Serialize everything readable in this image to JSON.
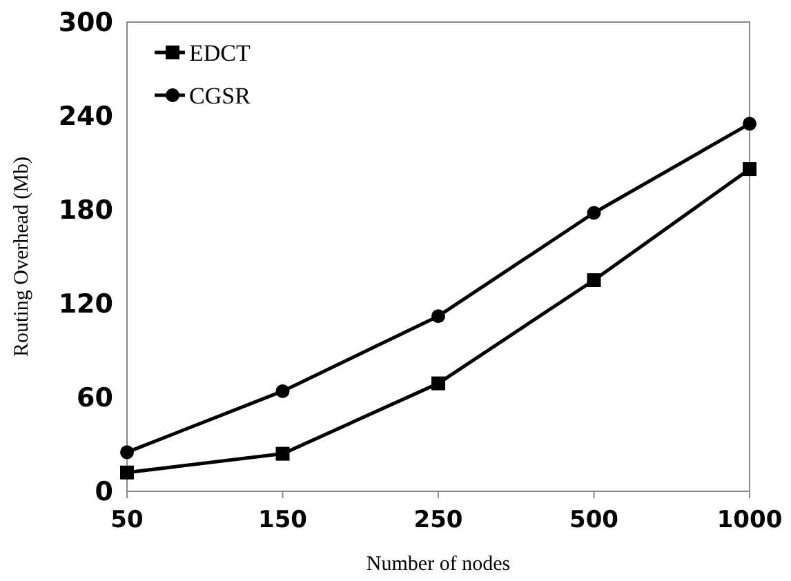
{
  "chart_data": {
    "type": "line",
    "xlabel": "Number of nodes",
    "ylabel": "Routing Overhead (Mb)",
    "categories": [
      "50",
      "150",
      "250",
      "500",
      "1000"
    ],
    "series": [
      {
        "name": "EDCT",
        "color": "#000000",
        "marker": "square",
        "values": [
          12,
          24,
          69,
          135,
          206
        ]
      },
      {
        "name": "CGSR",
        "color": "#000000",
        "marker": "circle",
        "values": [
          25,
          64,
          112,
          178,
          235
        ]
      }
    ],
    "ylim": [
      0,
      300
    ],
    "yticks": [
      0,
      60,
      120,
      180,
      240,
      300
    ],
    "grid": false,
    "legend": "top left",
    "line_style": "solid"
  }
}
